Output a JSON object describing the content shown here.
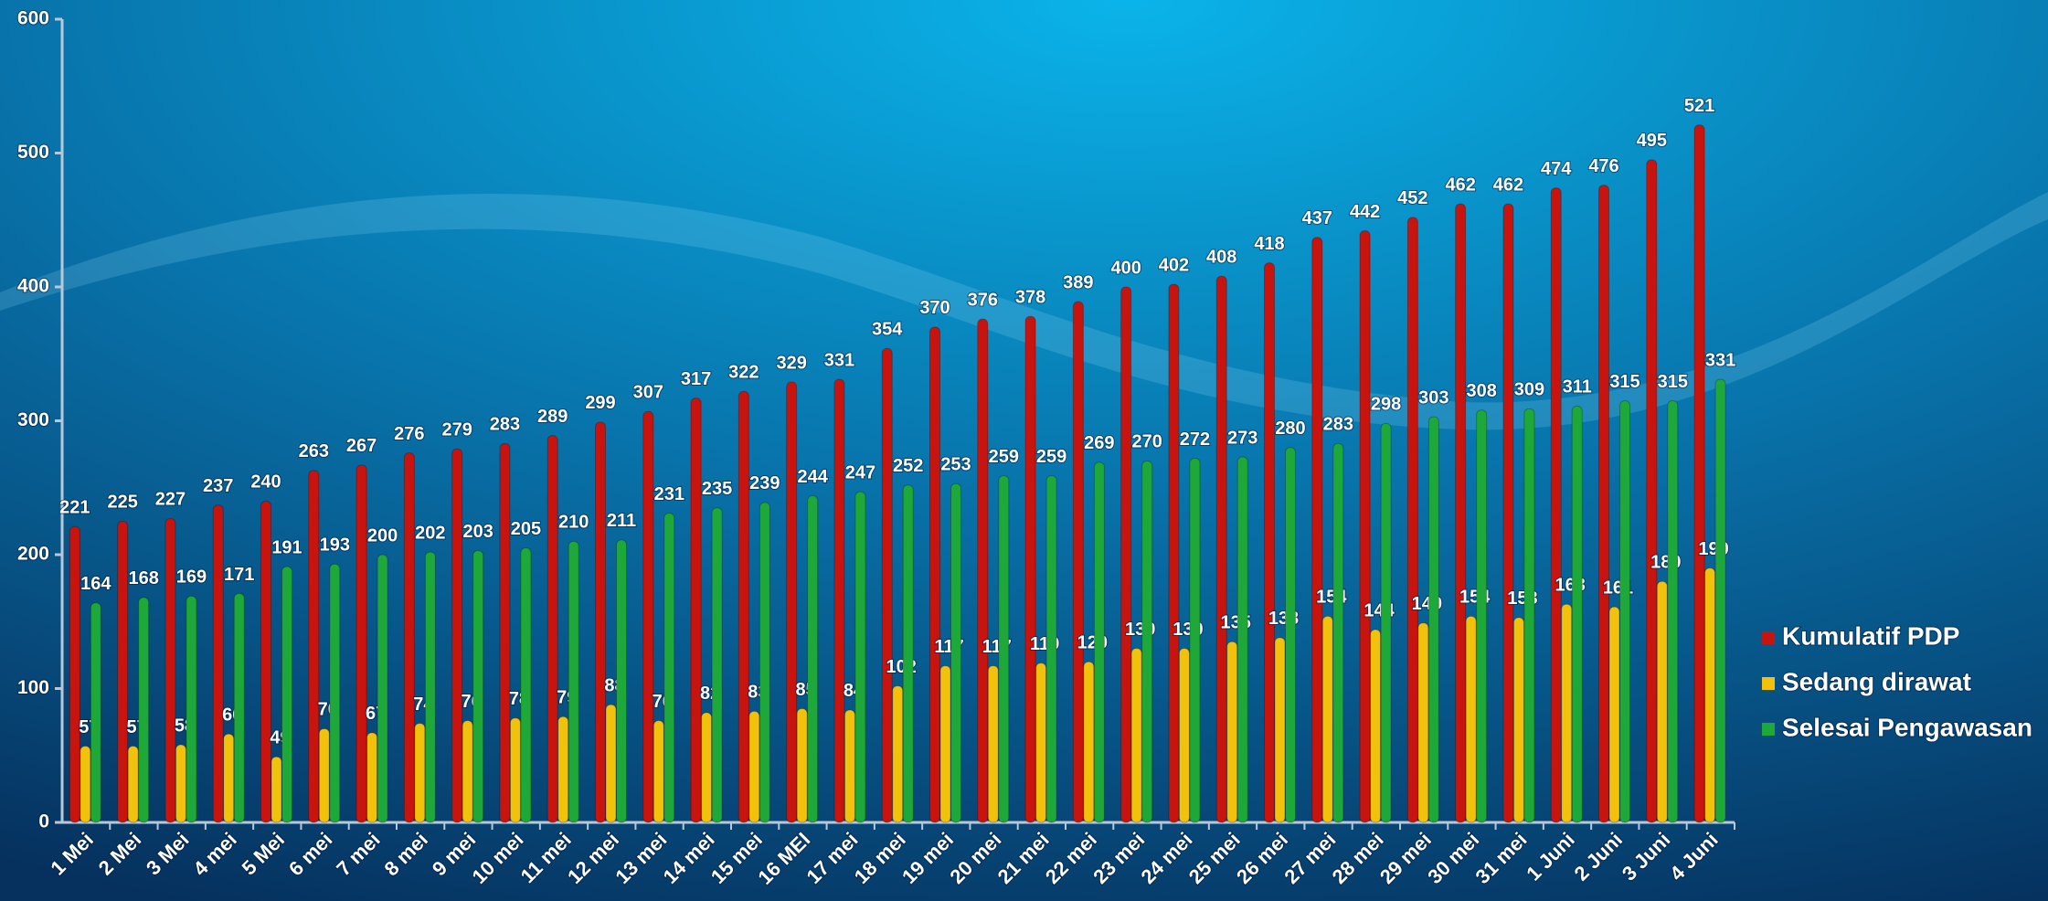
{
  "chart_data": {
    "type": "bar",
    "categories": [
      "1 Mei",
      "2 Mei",
      "3 Mei",
      "4 mei",
      "5 Mei",
      "6 mei",
      "7 mei",
      "8 mei",
      "9 mei",
      "10 mei",
      "11 mei",
      "12 mei",
      "13 mei",
      "14 mei",
      "15 mei",
      "16 MEI",
      "17 mei",
      "18 mei",
      "19 mei",
      "20 mei",
      "21 mei",
      "22 mei",
      "23 mei",
      "24 mei",
      "25 mei",
      "26 mei",
      "27 mei",
      "28 mei",
      "29 mei",
      "30 mei",
      "31 mei",
      "1 Juni",
      "2 Juni",
      "3 Juni",
      "4 Juni"
    ],
    "series": [
      {
        "name": "Kumulatif PDP",
        "color": "#c8140f",
        "values": [
          221,
          225,
          227,
          237,
          240,
          263,
          267,
          276,
          279,
          283,
          289,
          299,
          307,
          317,
          322,
          329,
          331,
          354,
          370,
          376,
          378,
          389,
          400,
          402,
          408,
          418,
          437,
          442,
          452,
          462,
          462,
          474,
          476,
          495,
          521
        ]
      },
      {
        "name": "Sedang dirawat",
        "color": "#f2c10c",
        "values": [
          57,
          57,
          58,
          66,
          49,
          70,
          67,
          74,
          76,
          78,
          79,
          88,
          76,
          82,
          83,
          85,
          84,
          102,
          117,
          117,
          119,
          120,
          130,
          130,
          135,
          138,
          154,
          144,
          149,
          154,
          153,
          163,
          161,
          180,
          190
        ]
      },
      {
        "name": "Selesai Pengawasan",
        "color": "#1fa83a",
        "values": [
          164,
          168,
          169,
          171,
          191,
          193,
          200,
          202,
          203,
          205,
          210,
          211,
          231,
          235,
          239,
          244,
          247,
          252,
          253,
          259,
          259,
          269,
          270,
          272,
          273,
          280,
          283,
          298,
          303,
          308,
          309,
          311,
          315,
          315,
          331
        ]
      }
    ],
    "ylim": [
      0,
      600
    ],
    "yticks": [
      0,
      100,
      200,
      300,
      400,
      500,
      600
    ],
    "legend": "right"
  }
}
